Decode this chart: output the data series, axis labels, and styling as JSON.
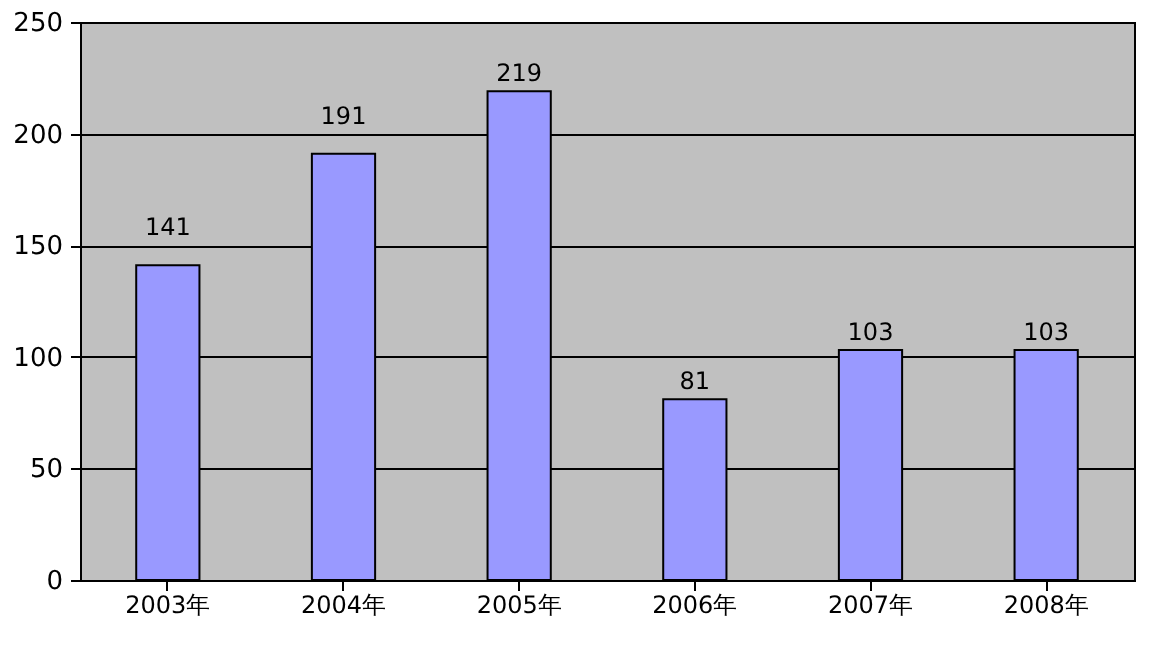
{
  "chart_data": {
    "type": "bar",
    "categories": [
      "2003年",
      "2004年",
      "2005年",
      "2006年",
      "2007年",
      "2008年"
    ],
    "values": [
      141,
      191,
      219,
      81,
      103,
      103
    ],
    "color": "#9999ff",
    "ylim": [
      0,
      250
    ],
    "yticks": [
      0,
      50,
      100,
      150,
      200,
      250
    ],
    "grid": "y",
    "data_labels": true
  }
}
